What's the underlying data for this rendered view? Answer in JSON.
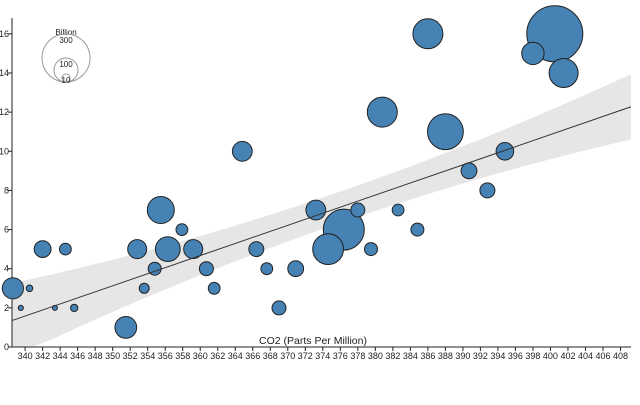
{
  "chart_data": {
    "type": "scatter",
    "title": "",
    "xlabel": "CO2 (Parts Per Million)",
    "ylabel": "",
    "xlim": [
      338.5,
      409.2
    ],
    "ylim": [
      0,
      16.4
    ],
    "x_ticks": [
      340,
      342,
      344,
      346,
      348,
      350,
      352,
      354,
      356,
      358,
      360,
      362,
      364,
      366,
      368,
      370,
      372,
      374,
      376,
      378,
      380,
      382,
      384,
      386,
      388,
      390,
      392,
      394,
      396,
      398,
      400,
      402,
      404,
      406,
      408
    ],
    "y_ticks": [
      0,
      2,
      4,
      6,
      8,
      10,
      12,
      14,
      16
    ],
    "grid": false,
    "size_legend": {
      "title": "Billion",
      "values": [
        300,
        100,
        10
      ],
      "labels": [
        "300",
        "100",
        "10"
      ],
      "placement": "top-left"
    },
    "marker_color": "#4682b4",
    "marker_stroke": "#222222",
    "regression": {
      "intercept_at_xmin": 1.35,
      "slope_per_ppm": 0.1545,
      "band_color": "#e6e6e6",
      "line_color": "#333333"
    },
    "points": [
      {
        "x": 338.6,
        "y": 3.0,
        "size": 80
      },
      {
        "x": 339.5,
        "y": 2.0,
        "size": 5
      },
      {
        "x": 340.5,
        "y": 3.0,
        "size": 8
      },
      {
        "x": 342.0,
        "y": 5.0,
        "size": 50
      },
      {
        "x": 343.4,
        "y": 2.0,
        "size": 4
      },
      {
        "x": 344.6,
        "y": 5.0,
        "size": 25
      },
      {
        "x": 345.6,
        "y": 2.0,
        "size": 10
      },
      {
        "x": 351.5,
        "y": 1.0,
        "size": 85
      },
      {
        "x": 352.8,
        "y": 5.0,
        "size": 65
      },
      {
        "x": 353.6,
        "y": 3.0,
        "size": 18
      },
      {
        "x": 354.8,
        "y": 4.0,
        "size": 30
      },
      {
        "x": 355.5,
        "y": 7.0,
        "size": 130
      },
      {
        "x": 356.3,
        "y": 5.0,
        "size": 110
      },
      {
        "x": 357.9,
        "y": 6.0,
        "size": 25
      },
      {
        "x": 359.2,
        "y": 5.0,
        "size": 65
      },
      {
        "x": 360.7,
        "y": 4.0,
        "size": 35
      },
      {
        "x": 361.6,
        "y": 3.0,
        "size": 25
      },
      {
        "x": 364.8,
        "y": 10.0,
        "size": 70
      },
      {
        "x": 366.4,
        "y": 5.0,
        "size": 40
      },
      {
        "x": 367.6,
        "y": 4.0,
        "size": 25
      },
      {
        "x": 369.0,
        "y": 2.0,
        "size": 35
      },
      {
        "x": 370.9,
        "y": 4.0,
        "size": 45
      },
      {
        "x": 373.2,
        "y": 7.0,
        "size": 70
      },
      {
        "x": 374.6,
        "y": 5.0,
        "size": 170
      },
      {
        "x": 376.4,
        "y": 6.0,
        "size": 300
      },
      {
        "x": 378.0,
        "y": 7.0,
        "size": 35
      },
      {
        "x": 379.5,
        "y": 5.0,
        "size": 30
      },
      {
        "x": 380.8,
        "y": 12.0,
        "size": 160
      },
      {
        "x": 382.6,
        "y": 7.0,
        "size": 25
      },
      {
        "x": 384.8,
        "y": 6.0,
        "size": 30
      },
      {
        "x": 386.0,
        "y": 16.0,
        "size": 160
      },
      {
        "x": 388.0,
        "y": 11.0,
        "size": 230
      },
      {
        "x": 390.7,
        "y": 9.0,
        "size": 45
      },
      {
        "x": 392.8,
        "y": 8.0,
        "size": 40
      },
      {
        "x": 394.8,
        "y": 10.0,
        "size": 55
      },
      {
        "x": 398.0,
        "y": 15.0,
        "size": 90
      },
      {
        "x": 400.5,
        "y": 16.0,
        "size": 560
      },
      {
        "x": 401.5,
        "y": 14.0,
        "size": 150
      }
    ]
  }
}
